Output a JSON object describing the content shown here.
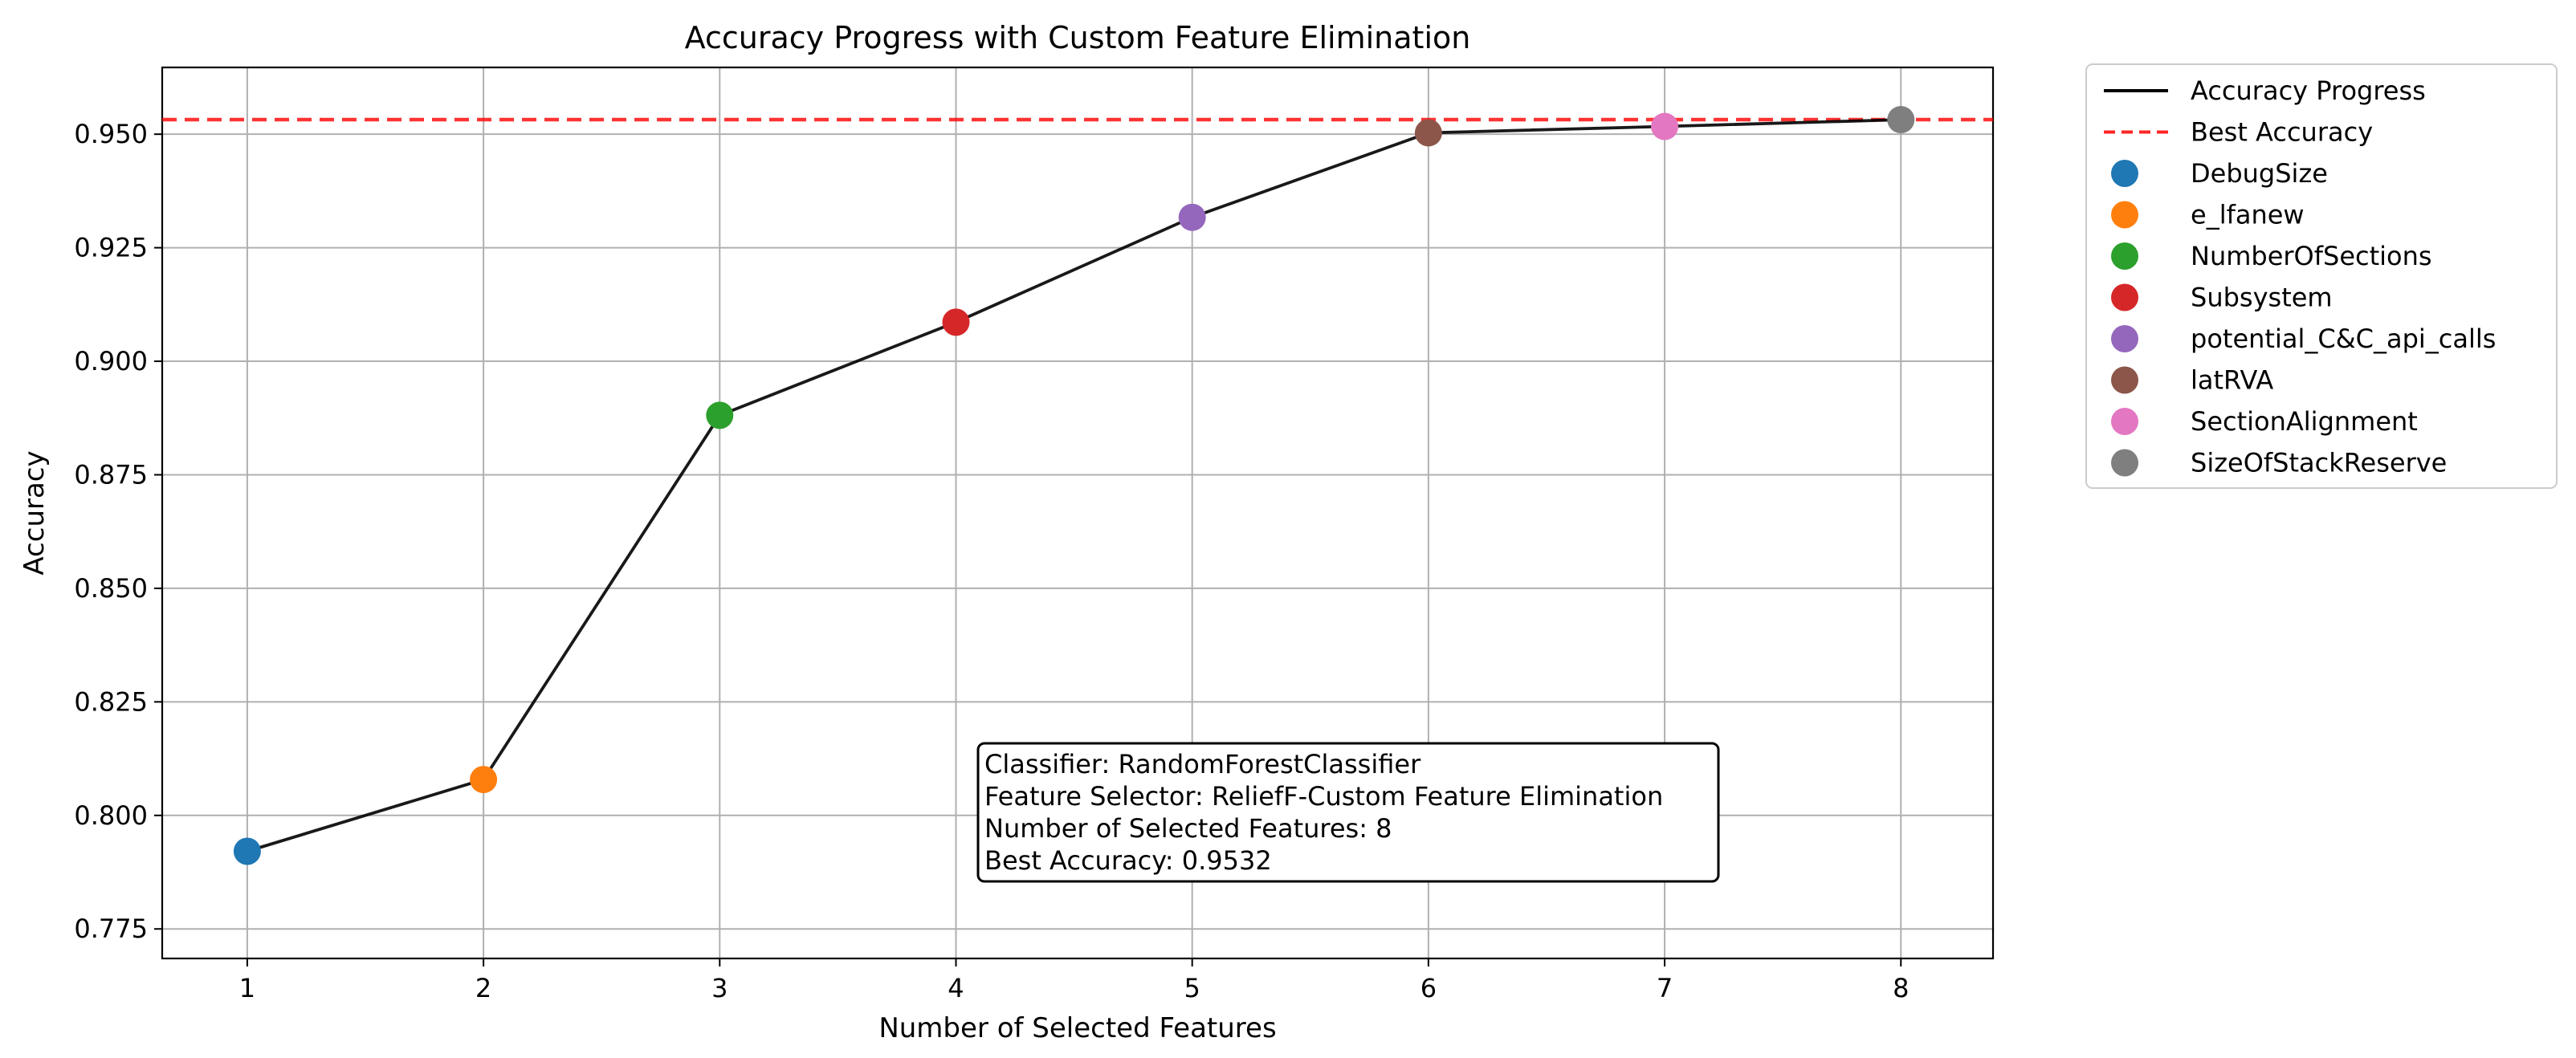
{
  "chart_data": {
    "type": "line",
    "title": "Accuracy Progress with Custom Feature Elimination",
    "xlabel": "Number of Selected Features",
    "ylabel": "Accuracy",
    "xlim": [
      0.64,
      8.39
    ],
    "ylim": [
      0.7685,
      0.9647
    ],
    "x_ticks": [
      1,
      2,
      3,
      4,
      5,
      6,
      7,
      8
    ],
    "y_ticks": [
      0.775,
      0.8,
      0.825,
      0.85,
      0.875,
      0.9,
      0.925,
      0.95
    ],
    "y_tick_labels": [
      "0.775",
      "0.800",
      "0.825",
      "0.850",
      "0.875",
      "0.900",
      "0.925",
      "0.950"
    ],
    "grid": true,
    "legend_position": "outside-right-top",
    "series": [
      {
        "name": "Accuracy Progress",
        "color": "#000000",
        "x": [
          1,
          2,
          3,
          4,
          5,
          6,
          7,
          8
        ],
        "y": [
          0.7921,
          0.8079,
          0.8881,
          0.9086,
          0.9317,
          0.9503,
          0.9517,
          0.9532
        ]
      }
    ],
    "reference_line": {
      "name": "Best Accuracy",
      "y": 0.9532,
      "color": "#ff0000",
      "style": "dashed"
    },
    "points": [
      {
        "name": "DebugSize",
        "x": 1,
        "y": 0.7921,
        "color": "#1f77b4"
      },
      {
        "name": "e_lfanew",
        "x": 2,
        "y": 0.8079,
        "color": "#ff7f0e"
      },
      {
        "name": "NumberOfSections",
        "x": 3,
        "y": 0.8881,
        "color": "#2ca02c"
      },
      {
        "name": "Subsystem",
        "x": 4,
        "y": 0.9086,
        "color": "#d62728"
      },
      {
        "name": "potential_C&C_api_calls",
        "x": 5,
        "y": 0.9317,
        "color": "#9467bd"
      },
      {
        "name": "latRVA",
        "x": 6,
        "y": 0.9503,
        "color": "#8c564b"
      },
      {
        "name": "SectionAlignment",
        "x": 7,
        "y": 0.9517,
        "color": "#e377c2"
      },
      {
        "name": "SizeOfStackReserve",
        "x": 8,
        "y": 0.9532,
        "color": "#7f7f7f"
      }
    ],
    "annotation": [
      "Classifier: RandomForestClassifier",
      "Feature Selector: ReliefF-Custom Feature Elimination",
      "Number of Selected Features: 8",
      "Best Accuracy: 0.9532"
    ]
  }
}
